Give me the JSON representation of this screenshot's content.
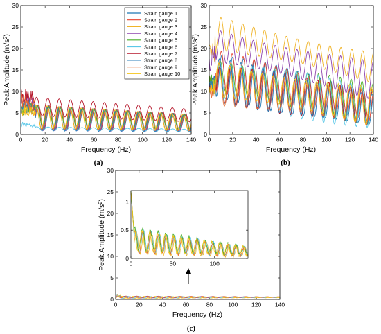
{
  "colors": [
    "#1f77b4",
    "#e8432e",
    "#f0b429",
    "#8e44ad",
    "#4caf2a",
    "#5bc8e8",
    "#b5172b",
    "#2c7fb8",
    "#e86a2e",
    "#f5c518"
  ],
  "chart_data": [
    {
      "panel": "(a)",
      "type": "line",
      "xlabel": "Frequency (Hz)",
      "ylabel": "Peak Amplitude (m/s²)",
      "ylabel_main": "Peak Amplitude (m/s",
      "ylabel_sup": "2",
      "ylabel_close": ")",
      "xlim": [
        0,
        140
      ],
      "ylim": [
        0,
        30
      ],
      "xticks": [
        0,
        20,
        40,
        60,
        80,
        100,
        120,
        140
      ],
      "yticks": [
        0,
        5,
        10,
        15,
        20,
        25,
        30
      ],
      "legend_position": "top-right",
      "series": [
        {
          "name": "Strain gauge 1",
          "base": 3.8,
          "amp": 2.8,
          "start": 8
        },
        {
          "name": "Strain gauge 2",
          "base": 4.0,
          "amp": 2.9,
          "start": 9
        },
        {
          "name": "Strain gauge 3",
          "base": 4.1,
          "amp": 2.7,
          "start": 7
        },
        {
          "name": "Strain gauge 4",
          "base": 3.9,
          "amp": 3.0,
          "start": 10
        },
        {
          "name": "Strain gauge 5",
          "base": 4.2,
          "amp": 2.6,
          "start": 8
        },
        {
          "name": "Strain gauge 6",
          "base": 1.4,
          "amp": 0.4,
          "start": 3
        },
        {
          "name": "Strain gauge 7",
          "base": 6.5,
          "amp": 2.2,
          "start": 11
        },
        {
          "name": "Strain gauge 8",
          "base": 3.7,
          "amp": 2.9,
          "start": 9
        },
        {
          "name": "Strain gauge 9",
          "base": 4.0,
          "amp": 2.8,
          "start": 10
        },
        {
          "name": "Strain gauge 10",
          "base": 4.1,
          "amp": 2.7,
          "start": 7
        }
      ]
    },
    {
      "panel": "(b)",
      "type": "line",
      "xlabel": "Frequency (Hz)",
      "ylabel": "Peak Amplitude (m/s²)",
      "ylabel_main": "Peak Amplitude (m/s",
      "ylabel_sup": "2",
      "ylabel_close": ")",
      "xlim": [
        0,
        140
      ],
      "ylim": [
        0,
        30
      ],
      "xticks": [
        0,
        20,
        40,
        60,
        80,
        100,
        120,
        140
      ],
      "yticks": [
        0,
        5,
        10,
        15,
        20,
        25,
        30
      ],
      "series": [
        {
          "start": 14,
          "end": 6.0,
          "amp": 5.5
        },
        {
          "start": 15,
          "end": 6.5,
          "amp": 5.0
        },
        {
          "start": 24,
          "end": 15.5,
          "amp": 4.0
        },
        {
          "start": 21,
          "end": 12.5,
          "amp": 4.5
        },
        {
          "start": 14,
          "end": 7.0,
          "amp": 5.0
        },
        {
          "start": 13,
          "end": 6.0,
          "amp": 5.5
        },
        {
          "start": 12,
          "end": 6.5,
          "amp": 4.8
        },
        {
          "start": 13,
          "end": 5.5,
          "amp": 5.2
        },
        {
          "start": 12,
          "end": 6.0,
          "amp": 5.0
        },
        {
          "start": 13,
          "end": 6.5,
          "amp": 4.6
        }
      ]
    },
    {
      "panel": "(c)",
      "type": "line",
      "xlabel": "Frequency (Hz)",
      "ylabel": "Peak Amplitude (m/s²)",
      "ylabel_main": "Peak Amplitude (m/s",
      "ylabel_sup": "2",
      "ylabel_close": ")",
      "xlim": [
        0,
        140
      ],
      "ylim": [
        0,
        30
      ],
      "xticks": [
        0,
        20,
        40,
        60,
        80,
        100,
        120,
        140
      ],
      "yticks": [
        0,
        5,
        10,
        15,
        20,
        25,
        30
      ],
      "series_levels": [
        0.45,
        0.5,
        0.55,
        0.5,
        0.48
      ],
      "inset": {
        "xlim": [
          0,
          140
        ],
        "ylim": [
          0,
          1.2
        ],
        "xticks": [
          0,
          50,
          100
        ],
        "yticks": [
          0,
          0.5,
          1
        ],
        "ytick_labels": [
          "0",
          "0.5",
          "1"
        ],
        "series_levels": [
          0.28,
          0.32,
          0.3,
          0.35,
          0.31
        ]
      }
    }
  ]
}
